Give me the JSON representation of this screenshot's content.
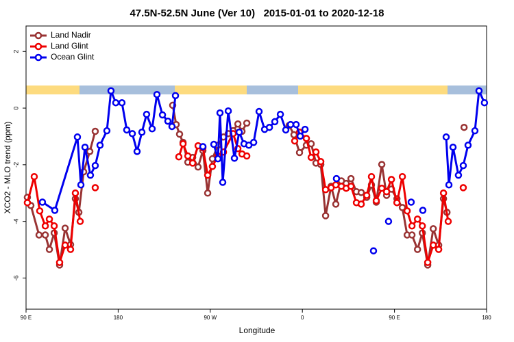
{
  "chart_data": {
    "type": "line",
    "title": "47.5N-52.5N June (Ver 10)   2015-01-01 to 2020-12-18",
    "x_label": "Longitude",
    "y_label": "XCO2 - MLO trend (ppm)",
    "xlim": [
      90,
      540
    ],
    "ylim": [
      -7.1,
      2.9
    ],
    "xticks": [
      {
        "value": 90,
        "label": "90 E"
      },
      {
        "value": 180,
        "label": "180"
      },
      {
        "value": 270,
        "label": "90 W"
      },
      {
        "value": 360,
        "label": "0"
      },
      {
        "value": 450,
        "label": "90 E"
      },
      {
        "value": 540,
        "label": "180"
      }
    ],
    "yticks": [
      2,
      0,
      -2,
      -4,
      -6
    ],
    "legend": "top-left",
    "series": [
      {
        "name": "Land Nadir",
        "color": "#993333",
        "x": [
          91.3,
          94.7,
          102.7,
          108.8,
          112.8,
          117.5,
          122.8,
          128.2,
          133.5,
          138.2,
          141.6,
          146.3,
          152.3,
          157.6,
          null,
          233.3,
          236.7,
          240.0,
          243.4,
          248.1,
          252.8,
          258.1,
          262.8,
          267.5,
          272.1,
          277.5,
          282.9,
          287.6,
          292.3,
          297.0,
          301.0,
          305.7,
          null,
          347.1,
          351.8,
          357.2,
          363.9,
          368.6,
          373.3,
          378.0,
          382.7,
          388.1,
          392.7,
          398.1,
          402.8,
          407.5,
          412.8,
          417.5,
          422.9,
          427.5,
          432.2,
          437.6,
          442.3,
          447.0,
          452.4,
          457.7,
          462.4,
          467.1,
          472.5,
          477.2,
          482.5,
          487.9,
          493.2,
          497.9,
          501.3,
          null,
          518.0
        ],
        "values": [
          -3.15,
          -3.44,
          -4.48,
          -4.48,
          -4.99,
          -4.41,
          -5.54,
          -4.24,
          -4.82,
          -3.2,
          -3.68,
          -2.25,
          -1.53,
          -0.82,
          null,
          0.1,
          -0.58,
          -0.92,
          -1.21,
          -1.91,
          -1.74,
          -2.08,
          -1.5,
          -3.0,
          -1.79,
          -1.31,
          -1.02,
          -0.9,
          -0.8,
          -0.56,
          -0.82,
          -0.53,
          null,
          -0.61,
          -0.94,
          -1.57,
          -1.31,
          -1.26,
          -1.94,
          -1.99,
          -3.8,
          -2.76,
          -3.39,
          -2.57,
          -2.66,
          -2.49,
          -2.95,
          -2.98,
          -3.15,
          -2.71,
          -3.32,
          -1.99,
          -3.08,
          -2.86,
          -3.2,
          -3.51,
          -4.48,
          -4.48,
          -4.99,
          -4.41,
          -5.54,
          -4.26,
          -4.84,
          -3.2,
          -3.68,
          null,
          -0.68
        ]
      },
      {
        "name": "Land Glint",
        "color": "#ee0000",
        "x": [
          91.3,
          98.0,
          103.4,
          108.8,
          112.8,
          117.5,
          122.8,
          128.2,
          133.5,
          138.2,
          142.9,
          null,
          157.6,
          null,
          239.3,
          243.4,
          248.1,
          252.8,
          258.1,
          262.8,
          267.5,
          272.1,
          277.5,
          282.9,
          292.3,
          297.0,
          301.0,
          305.7,
          null,
          352.5,
          357.2,
          363.9,
          368.6,
          373.3,
          378.0,
          382.7,
          388.1,
          392.7,
          398.1,
          402.8,
          407.5,
          412.8,
          417.5,
          422.9,
          427.5,
          432.2,
          437.6,
          442.3,
          447.0,
          452.4,
          457.7,
          462.4,
          467.1,
          472.5,
          477.2,
          482.5,
          487.9,
          493.2,
          497.9,
          502.5,
          null,
          517.2
        ],
        "values": [
          -3.34,
          -2.42,
          -3.63,
          -4.16,
          -3.92,
          -4.16,
          -5.45,
          -4.84,
          -4.99,
          -3.0,
          -4.0,
          null,
          -2.81,
          null,
          -1.72,
          -1.26,
          -1.69,
          -1.94,
          -1.33,
          -1.4,
          -2.37,
          -2.06,
          -1.69,
          -1.55,
          -0.9,
          -1.43,
          -1.62,
          -1.69,
          null,
          -1.16,
          -0.85,
          -1.07,
          -1.74,
          -1.55,
          -1.89,
          -2.88,
          -2.81,
          -2.71,
          -2.76,
          -2.83,
          -2.76,
          -3.34,
          -3.39,
          -3.08,
          -2.42,
          -3.27,
          -2.83,
          -2.95,
          -2.52,
          -3.34,
          -2.42,
          -3.63,
          -4.16,
          -3.92,
          -4.16,
          -5.45,
          -4.84,
          -4.99,
          -3.0,
          -4.0,
          null,
          -2.81
        ]
      },
      {
        "name": "Ocean Glint",
        "color": "#0000ee",
        "x": [
          106.0,
          118.1,
          140.2,
          143.6,
          147.6,
          152.9,
          157.6,
          162.3,
          169.0,
          173.0,
          177.7,
          183.7,
          188.4,
          193.8,
          198.5,
          203.2,
          207.8,
          213.2,
          217.9,
          223.3,
          228.6,
          232.6,
          236.0,
          null,
          262.8,
          null,
          273.5,
          277.5,
          279.5,
          282.2,
          287.6,
          293.6,
          298.3,
          303.0,
          307.7,
          312.4,
          317.7,
          323.1,
          327.8,
          333.1,
          338.5,
          343.8,
          348.5,
          353.9,
          357.9,
          362.6,
          null,
          393.3,
          null,
          429.5,
          null,
          444.2,
          null,
          466.3,
          null,
          477.7,
          null,
          500.5,
          503.2,
          507.2,
          512.5,
          517.2,
          521.9,
          528.6,
          532.6,
          537.9
        ],
        "values": [
          -3.32,
          -3.61,
          -1.02,
          -2.71,
          -1.38,
          -2.37,
          -2.03,
          -1.31,
          -0.8,
          0.61,
          0.19,
          0.19,
          -0.77,
          -0.9,
          -1.53,
          -0.85,
          -0.22,
          -0.73,
          0.48,
          -0.24,
          -0.46,
          -0.65,
          0.44,
          null,
          -1.36,
          null,
          -1.28,
          -1.79,
          -0.17,
          -2.62,
          -0.1,
          -1.77,
          -0.85,
          -1.26,
          -1.31,
          -1.21,
          -0.12,
          -0.75,
          -0.68,
          -0.48,
          -0.22,
          -0.77,
          -0.58,
          -0.58,
          -0.99,
          -0.75,
          null,
          -2.49,
          null,
          -5.04,
          null,
          -4.0,
          null,
          -3.32,
          null,
          -3.61,
          null,
          -1.02,
          -2.71,
          -1.38,
          -2.37,
          -2.03,
          -1.31,
          -0.8,
          0.61,
          0.19
        ]
      }
    ]
  }
}
